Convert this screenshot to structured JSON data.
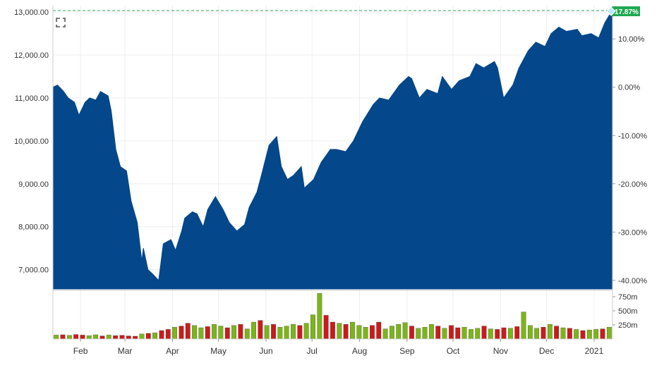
{
  "chart_data": {
    "type": "area",
    "title": "",
    "xlabel": "",
    "ylabel": "",
    "ylim": [
      6550,
      13150
    ],
    "y_ticks": [
      "7,000.00",
      "8,000.00",
      "9,000.00",
      "10,000.00",
      "11,000.00",
      "12,000.00",
      "13,000.00"
    ],
    "y_tick_values": [
      7000,
      8000,
      9000,
      10000,
      11000,
      12000,
      13000
    ],
    "y2_ticks": [
      "-40.00%",
      "-30.00%",
      "-20.00%",
      "-10.00%",
      "0.00%",
      "10.00%"
    ],
    "y2_tick_values": [
      -40,
      -30,
      -20,
      -10,
      0,
      10
    ],
    "x_ticks": [
      "Feb",
      "Mar",
      "Apr",
      "May",
      "Jun",
      "Jul",
      "Aug",
      "Sep",
      "Oct",
      "Nov",
      "Dec",
      "2021"
    ],
    "x_tick_dates": [
      "2020-02-01",
      "2020-03-01",
      "2020-04-01",
      "2020-05-01",
      "2020-06-01",
      "2020-07-01",
      "2020-08-01",
      "2020-09-01",
      "2020-10-01",
      "2020-11-01",
      "2020-12-01",
      "2021-01-01"
    ],
    "xlim": [
      "2020-01-14",
      "2021-01-13"
    ],
    "grid": true,
    "current_change_label": "17.87%",
    "colors": {
      "area": "#04478a",
      "up_volume": "#7cb518",
      "down_volume": "#cc1a1a",
      "badge": "#1fa84f",
      "reference_line": "#27a862",
      "grid": "#eeeeee",
      "axis_text": "#333333"
    },
    "series": [
      {
        "x": [
          "2020-01-14",
          "2020-01-17",
          "2020-01-21",
          "2020-01-24",
          "2020-01-28",
          "2020-01-31",
          "2020-02-04",
          "2020-02-07",
          "2020-02-11",
          "2020-02-14",
          "2020-02-19",
          "2020-02-21",
          "2020-02-24",
          "2020-02-27",
          "2020-03-02",
          "2020-03-05",
          "2020-03-09",
          "2020-03-12",
          "2020-03-13",
          "2020-03-16",
          "2020-03-19",
          "2020-03-23",
          "2020-03-26",
          "2020-03-31",
          "2020-04-03",
          "2020-04-07",
          "2020-04-09",
          "2020-04-14",
          "2020-04-17",
          "2020-04-21",
          "2020-04-24",
          "2020-04-29",
          "2020-05-04",
          "2020-05-08",
          "2020-05-13",
          "2020-05-18",
          "2020-05-21",
          "2020-05-26",
          "2020-05-29",
          "2020-06-03",
          "2020-06-08",
          "2020-06-11",
          "2020-06-15",
          "2020-06-19",
          "2020-06-24",
          "2020-06-26",
          "2020-07-02",
          "2020-07-07",
          "2020-07-13",
          "2020-07-17",
          "2020-07-23",
          "2020-07-28",
          "2020-08-03",
          "2020-08-10",
          "2020-08-14",
          "2020-08-20",
          "2020-08-27",
          "2020-09-02",
          "2020-09-04",
          "2020-09-09",
          "2020-09-14",
          "2020-09-21",
          "2020-09-24",
          "2020-09-30",
          "2020-10-05",
          "2020-10-12",
          "2020-10-16",
          "2020-10-21",
          "2020-10-28",
          "2020-10-30",
          "2020-11-03",
          "2020-11-09",
          "2020-11-13",
          "2020-11-19",
          "2020-11-24",
          "2020-11-30",
          "2020-12-04",
          "2020-12-09",
          "2020-12-14",
          "2020-12-21",
          "2020-12-24",
          "2020-12-30",
          "2021-01-04",
          "2021-01-08",
          "2021-01-13"
        ],
        "values": [
          11250,
          11300,
          11150,
          11000,
          10900,
          10600,
          10900,
          11000,
          10950,
          11150,
          11050,
          10700,
          9800,
          9400,
          9300,
          8600,
          8100,
          7200,
          7500,
          7000,
          6900,
          6750,
          7600,
          7700,
          7450,
          7900,
          8200,
          8350,
          8300,
          8000,
          8400,
          8700,
          8400,
          8100,
          7900,
          8050,
          8450,
          8800,
          9200,
          9900,
          10100,
          9400,
          9100,
          9200,
          9400,
          8900,
          9100,
          9500,
          9800,
          9800,
          9750,
          10000,
          10450,
          10850,
          11000,
          10950,
          11300,
          11500,
          11450,
          11000,
          11200,
          11100,
          11500,
          11200,
          11400,
          11500,
          11800,
          11700,
          11850,
          11700,
          11000,
          11300,
          11700,
          12100,
          12300,
          12200,
          12500,
          12650,
          12550,
          12600,
          12450,
          12500,
          12400,
          12750,
          13050
        ]
      }
    ],
    "volume": {
      "y_ticks": [
        "250m",
        "500m",
        "750m"
      ],
      "y_tick_values": [
        250,
        500,
        750
      ],
      "ylim": [
        0,
        850
      ],
      "values": [
        70,
        75,
        65,
        80,
        70,
        60,
        75,
        55,
        70,
        60,
        65,
        55,
        50,
        90,
        100,
        110,
        150,
        170,
        210,
        230,
        280,
        240,
        200,
        220,
        260,
        230,
        200,
        240,
        260,
        180,
        300,
        330,
        240,
        260,
        210,
        230,
        260,
        240,
        280,
        430,
        810,
        420,
        300,
        280,
        260,
        300,
        240,
        210,
        240,
        300,
        180,
        230,
        260,
        290,
        230,
        190,
        210,
        260,
        230,
        190,
        240,
        200,
        210,
        170,
        190,
        230,
        180,
        170,
        200,
        190,
        220,
        480,
        240,
        190,
        210,
        260,
        230,
        200,
        190,
        170,
        150,
        160,
        170,
        180,
        210
      ],
      "directions": [
        "u",
        "d",
        "u",
        "d",
        "d",
        "u",
        "u",
        "d",
        "u",
        "d",
        "d",
        "d",
        "d",
        "u",
        "d",
        "u",
        "d",
        "d",
        "u",
        "d",
        "d",
        "u",
        "u",
        "d",
        "u",
        "u",
        "d",
        "u",
        "d",
        "u",
        "u",
        "d",
        "u",
        "d",
        "u",
        "u",
        "u",
        "d",
        "u",
        "u",
        "u",
        "d",
        "d",
        "u",
        "d",
        "u",
        "u",
        "u",
        "d",
        "d",
        "u",
        "u",
        "u",
        "u",
        "d",
        "u",
        "u",
        "u",
        "d",
        "u",
        "d",
        "d",
        "u",
        "u",
        "u",
        "d",
        "u",
        "d",
        "d",
        "u",
        "d",
        "u",
        "u",
        "u",
        "d",
        "u",
        "d",
        "u",
        "d",
        "u",
        "d",
        "u",
        "u",
        "d",
        "u"
      ]
    }
  }
}
